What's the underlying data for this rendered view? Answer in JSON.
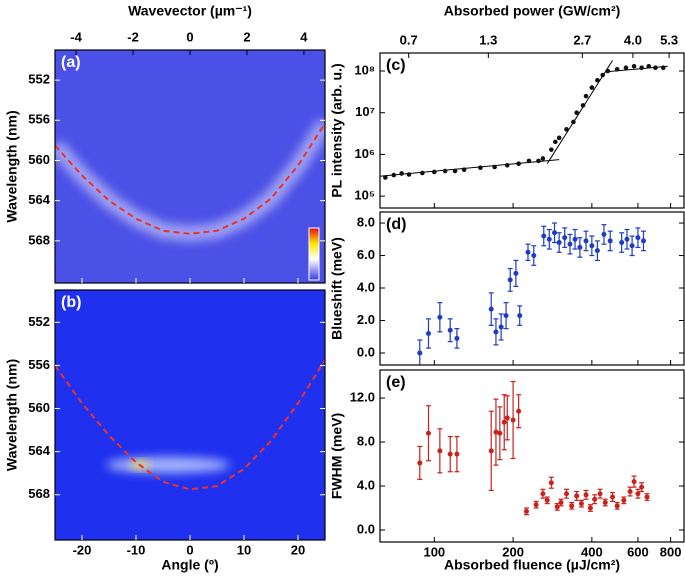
{
  "chart_data": [
    {
      "type": "heatmap",
      "label": "(a)",
      "x2label": "Wavevector (µm⁻¹)",
      "x2lim": [
        -4.74,
        4.74
      ],
      "x2ticks": [
        -4,
        -2,
        0,
        2,
        4
      ],
      "xlim": [
        -25,
        25
      ],
      "xticks": [
        -20,
        -10,
        0,
        10,
        20
      ],
      "ylabel": "Wavelength (nm)",
      "ylim": [
        549,
        572.2
      ],
      "y_inverted": true,
      "yticks": [
        552,
        556,
        560,
        564,
        568
      ],
      "background": "#4b50e6",
      "x": [
        -25,
        -20,
        -15,
        -10,
        -5,
        0,
        5,
        10,
        15,
        20,
        25
      ],
      "values": [
        558.5,
        561.5,
        564,
        565.8,
        567,
        567.3,
        567,
        565.8,
        563.8,
        560.5,
        556.3
      ],
      "color": "#e8322c"
    },
    {
      "type": "heatmap",
      "label": "(b)",
      "xlabel": "Angle (º)",
      "xlim": [
        -25,
        25
      ],
      "xticks": [
        -20,
        -10,
        0,
        10,
        20
      ],
      "ylabel": "Wavelength (nm)",
      "ylim": [
        549,
        572.2
      ],
      "y_inverted": true,
      "yticks": [
        552,
        556,
        560,
        564,
        568
      ],
      "background": "#1f30ee",
      "x": [
        -25,
        -20,
        -15,
        -10,
        -5,
        0,
        5,
        10,
        15,
        20,
        25
      ],
      "values": [
        556,
        559.5,
        562.5,
        565,
        566.8,
        567.5,
        567.2,
        565.6,
        563,
        559.5,
        555.5
      ],
      "color": "#e8322c"
    },
    {
      "type": "scatter",
      "label": "(c)",
      "x2label": "Absorbed power (GW/cm²)",
      "x2lim": [
        0.56,
        5.95
      ],
      "x2log": true,
      "x2ticks": [
        0.7,
        1.3,
        2.7,
        {
          "value": 4,
          "label": "4.0"
        },
        5.3
      ],
      "xlim": [
        62,
        900
      ],
      "xlog": true,
      "xticks": [
        100,
        200,
        400,
        600,
        800
      ],
      "ylabel": "PL intensity (arb. u.)",
      "ylim": [
        52000,
        270000000
      ],
      "ylog": true,
      "yticks": [
        {
          "value": 100000,
          "label": "10⁵"
        },
        {
          "value": 1000000,
          "label": "10⁶"
        },
        {
          "value": 10000000,
          "label": "10⁷"
        },
        {
          "value": 100000000,
          "label": "10⁸"
        }
      ],
      "color": "#111111",
      "x": [
        65,
        70,
        75,
        80,
        90,
        100,
        110,
        120,
        130,
        150,
        170,
        190,
        210,
        230,
        250,
        260,
        280,
        290,
        300,
        320,
        340,
        350,
        370,
        380,
        400,
        420,
        440,
        460,
        500,
        540,
        580,
        620,
        660,
        700,
        750
      ],
      "values": [
        280000,
        320000,
        350000,
        330000,
        360000,
        380000,
        400000,
        400000,
        430000,
        480000,
        500000,
        550000,
        600000,
        700000,
        700000,
        800000,
        1300000,
        2000000,
        2500000,
        4000000,
        6000000,
        10000000,
        15000000,
        25000000,
        40000000,
        60000000,
        80000000,
        100000000,
        110000000,
        120000000,
        130000000,
        120000000,
        130000000,
        120000000,
        120000000
      ],
      "lines": [
        {
          "x": [
            62,
            300
          ],
          "values": [
            300000,
            750000
          ]
        },
        {
          "x": [
            270,
            480
          ],
          "values": [
            600000,
            180000000
          ]
        },
        {
          "x": [
            450,
            780
          ],
          "values": [
            95000000,
            130000000
          ]
        }
      ]
    },
    {
      "type": "errorbar",
      "label": "(d)",
      "xlim": [
        62,
        900
      ],
      "xlog": true,
      "xticks": [
        100,
        200,
        400,
        600,
        800
      ],
      "ylabel": "Blueshift (meV)",
      "ylim": [
        -0.74,
        8.68
      ],
      "yticks": [
        {
          "value": 0,
          "label": "0.0"
        },
        {
          "value": 2,
          "label": "2.0"
        },
        {
          "value": 4,
          "label": "4.0"
        },
        {
          "value": 6,
          "label": "6.0"
        },
        {
          "value": 8,
          "label": "8.0"
        }
      ],
      "color": "#1f3bc2",
      "x": [
        88,
        95,
        105,
        115,
        122,
        165,
        172,
        180,
        188,
        195,
        205,
        212,
        228,
        240,
        262,
        275,
        288,
        300,
        315,
        330,
        345,
        360,
        380,
        400,
        420,
        445,
        470,
        520,
        545,
        570,
        600,
        630
      ],
      "values": [
        0,
        1.2,
        2.2,
        1.4,
        0.9,
        2.7,
        1.3,
        1.6,
        2.3,
        4.5,
        4.9,
        2.3,
        6.2,
        6,
        7.2,
        7,
        7.4,
        6.8,
        7.1,
        6.7,
        7,
        6.5,
        6.9,
        6.6,
        6.3,
        7.3,
        6.9,
        6.8,
        7,
        6.6,
        7.1,
        6.9
      ],
      "errors": [
        0.8,
        0.9,
        0.9,
        0.7,
        0.6,
        1,
        0.8,
        0.8,
        0.8,
        0.7,
        0.8,
        0.6,
        0.5,
        0.6,
        0.6,
        0.6,
        0.6,
        0.6,
        0.6,
        0.6,
        0.6,
        0.6,
        0.6,
        0.6,
        0.6,
        0.6,
        0.6,
        0.6,
        0.6,
        0.6,
        0.6,
        0.6
      ]
    },
    {
      "type": "errorbar",
      "label": "(e)",
      "xlabel": "Absorbed fluence (µJ/cm²)",
      "xlim": [
        62,
        900
      ],
      "xlog": true,
      "xticks": [
        100,
        200,
        400,
        600,
        800
      ],
      "ylabel": "FWHM (meV)",
      "ylim": [
        -1.09,
        14.55
      ],
      "yticks": [
        {
          "value": 0,
          "label": "0.0"
        },
        {
          "value": 4,
          "label": "4.0"
        },
        {
          "value": 8,
          "label": "8.0"
        },
        {
          "value": 12,
          "label": "12.0"
        }
      ],
      "color": "#c8211e",
      "x": [
        88,
        95,
        105,
        115,
        122,
        165,
        172,
        178,
        185,
        190,
        200,
        210,
        225,
        245,
        260,
        270,
        280,
        295,
        305,
        320,
        335,
        350,
        365,
        380,
        395,
        410,
        430,
        450,
        480,
        500,
        530,
        560,
        580,
        600,
        620,
        650
      ],
      "values": [
        6.1,
        8.8,
        7.2,
        6.9,
        6.9,
        7.2,
        8.9,
        8.8,
        9.8,
        10.2,
        10,
        10.8,
        1.7,
        2.3,
        3.3,
        2.7,
        4.3,
        2.1,
        2.5,
        3.3,
        2.2,
        3.1,
        2.4,
        3.2,
        2,
        2.8,
        3.3,
        2.5,
        3,
        2.2,
        2.7,
        3.5,
        4.4,
        3.3,
        3.9,
        3
      ],
      "errors": [
        1.5,
        2.5,
        2,
        1.6,
        1.6,
        3.6,
        3,
        2.4,
        2.5,
        2,
        3.5,
        1.5,
        0.3,
        0.3,
        0.4,
        0.3,
        0.5,
        0.3,
        0.3,
        0.4,
        0.3,
        0.4,
        0.3,
        0.4,
        0.3,
        0.4,
        0.4,
        0.3,
        0.4,
        0.3,
        0.3,
        0.4,
        0.5,
        0.4,
        0.4,
        0.3
      ]
    }
  ]
}
